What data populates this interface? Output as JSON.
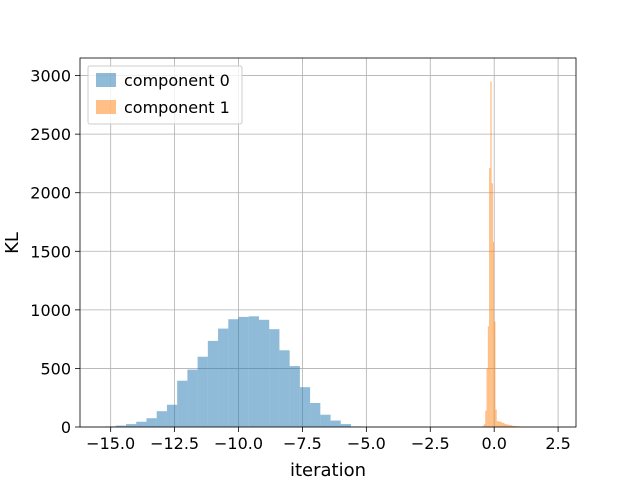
{
  "chart_data": {
    "type": "bar",
    "title": "",
    "xlabel": "iteration",
    "ylabel": "KL",
    "xlim": [
      -16.2,
      3.2
    ],
    "ylim": [
      0,
      3150
    ],
    "xticks": [
      -15.0,
      -12.5,
      -10.0,
      -7.5,
      -5.0,
      -2.5,
      0.0,
      2.5
    ],
    "xtick_labels": [
      "−15.0",
      "−12.5",
      "−10.0",
      "−7.5",
      "−5.0",
      "−2.5",
      "0.0",
      "2.5"
    ],
    "yticks": [
      0,
      500,
      1000,
      1500,
      2000,
      2500,
      3000
    ],
    "ytick_labels": [
      "0",
      "500",
      "1000",
      "1500",
      "2000",
      "2500",
      "3000"
    ],
    "grid": true,
    "legend_position": "top-left",
    "series": [
      {
        "name": "component 0",
        "color": "#1f77b4",
        "opacity": 0.5,
        "bin_edges": [
          -15.2,
          -14.8,
          -14.4,
          -14.0,
          -13.6,
          -13.2,
          -12.8,
          -12.4,
          -12.0,
          -11.6,
          -11.2,
          -10.8,
          -10.4,
          -10.0,
          -9.6,
          -9.2,
          -8.8,
          -8.4,
          -8.0,
          -7.6,
          -7.2,
          -6.8,
          -6.4,
          -6.0,
          -5.6,
          -5.2
        ],
        "counts": [
          5,
          12,
          25,
          45,
          75,
          135,
          190,
          395,
          490,
          600,
          735,
          840,
          920,
          940,
          945,
          915,
          835,
          655,
          520,
          340,
          205,
          105,
          55,
          25,
          5
        ]
      },
      {
        "name": "component 1",
        "color": "#ff7f0e",
        "opacity": 0.5,
        "bin_edges": [
          -0.5,
          -0.45,
          -0.4,
          -0.35,
          -0.3,
          -0.25,
          -0.2,
          -0.15,
          -0.1,
          -0.05,
          0.0,
          0.05,
          0.1,
          0.2,
          0.3,
          0.4,
          0.5,
          0.6,
          0.7,
          0.8,
          0.9,
          1.0,
          1.1,
          1.2,
          1.3,
          1.4,
          1.5
        ],
        "counts": [
          3,
          10,
          25,
          140,
          500,
          860,
          2210,
          2950,
          2080,
          1580,
          900,
          150,
          50,
          45,
          35,
          25,
          20,
          15,
          10,
          8,
          6,
          4,
          3,
          2,
          1,
          1
        ]
      }
    ]
  }
}
